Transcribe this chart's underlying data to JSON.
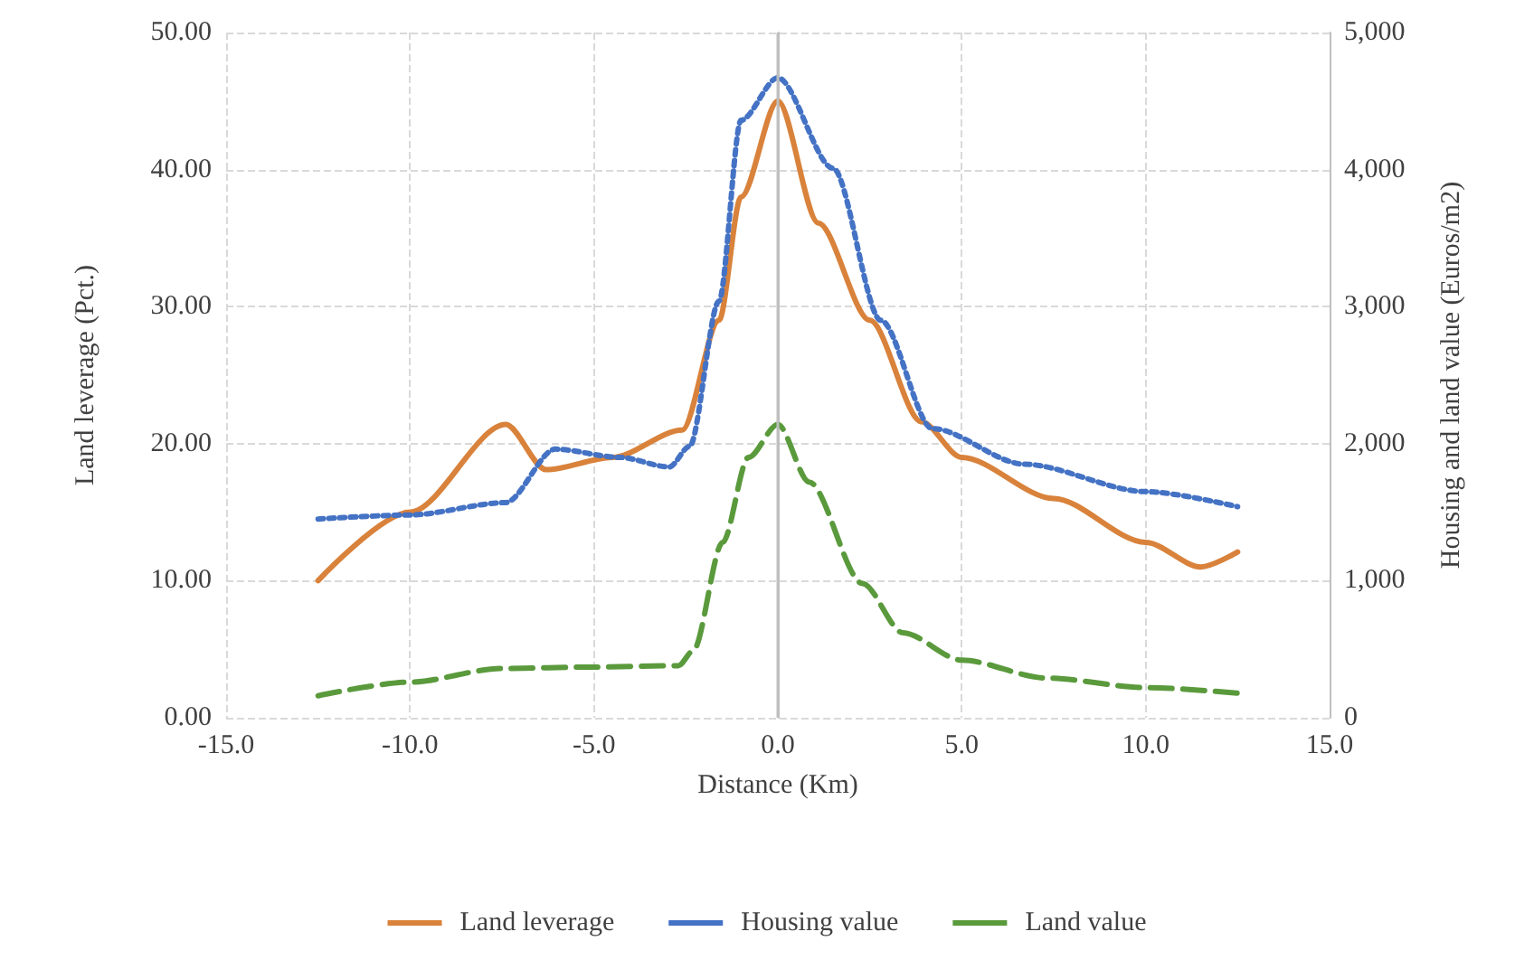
{
  "chart_data": {
    "type": "line",
    "xlabel": "Distance (Km)",
    "ylabel": "Land leverage (Pct.)",
    "y2label": "Housing and land value (Euros/m2)",
    "xlim": [
      -15,
      15
    ],
    "xticks": [
      {
        "value": -15,
        "label": "-15.0"
      },
      {
        "value": -10,
        "label": "-10.0"
      },
      {
        "value": -5,
        "label": "-5.0"
      },
      {
        "value": 0,
        "label": "0.0"
      },
      {
        "value": 5,
        "label": "5.0"
      },
      {
        "value": 10,
        "label": "10.0"
      },
      {
        "value": 15,
        "label": "15.0"
      }
    ],
    "ylim": [
      0,
      50
    ],
    "yticks": [
      {
        "value": 0,
        "label": "0.00"
      },
      {
        "value": 10,
        "label": "10.00"
      },
      {
        "value": 20,
        "label": "20.00"
      },
      {
        "value": 30,
        "label": "30.00"
      },
      {
        "value": 40,
        "label": "40.00"
      },
      {
        "value": 50,
        "label": "50.00"
      }
    ],
    "y2lim": [
      0,
      5000
    ],
    "y2ticks": [
      0,
      {
        "value": 1000,
        "label": "1,000"
      },
      {
        "value": 2000,
        "label": "2,000"
      },
      {
        "value": 3000,
        "label": "3,000"
      },
      {
        "value": 4000,
        "label": "4,000"
      },
      {
        "value": 5000,
        "label": "5,000"
      }
    ],
    "grid": true,
    "legend": "bottom",
    "marker": "none",
    "ref_lines": [
      {
        "axis": "x",
        "value": 0,
        "color": "#bfbfbf",
        "line_style": "solid"
      }
    ],
    "series": [
      {
        "name": "Land leverage",
        "color": "#d9823b",
        "line_style": "solid",
        "x": [
          -12.5,
          -10,
          -7.4,
          -6.3,
          -4.5,
          -2.6,
          -1.6,
          -1,
          0,
          1.1,
          2.5,
          3.9,
          5,
          7.5,
          10,
          11.5,
          12.5
        ],
        "values": [
          10,
          15,
          21.4,
          18.1,
          19,
          21,
          29,
          38,
          45,
          36.1,
          29,
          21.6,
          19,
          16,
          12.8,
          11,
          12.1
        ]
      },
      {
        "name": "Housing value",
        "color": "#4472c4",
        "line_style": "dotted",
        "axis": "y2",
        "x": [
          -12.5,
          -10,
          -7.4,
          -6.05,
          -4.3,
          -2.95,
          -2.4,
          -1.6,
          -1,
          0,
          1.5,
          2.8,
          4.2,
          6.7,
          10,
          12.5
        ],
        "values": [
          1450,
          1480,
          1570,
          1960,
          1900,
          1830,
          1980,
          3040,
          4360,
          4670,
          4010,
          2900,
          2110,
          1850,
          1650,
          1540
        ]
      },
      {
        "name": "Land value",
        "color": "#5a9a3c",
        "line_style": "dashed",
        "axis": "y2",
        "x": [
          -12.5,
          -10,
          -7.5,
          -5,
          -2.7,
          -2.3,
          -1.5,
          -0.8,
          0,
          0.85,
          2.3,
          3.4,
          5,
          7.3,
          10,
          12.5
        ],
        "values": [
          160,
          260,
          360,
          370,
          380,
          490,
          1280,
          1900,
          2140,
          1720,
          980,
          620,
          420,
          290,
          220,
          180
        ]
      }
    ]
  }
}
